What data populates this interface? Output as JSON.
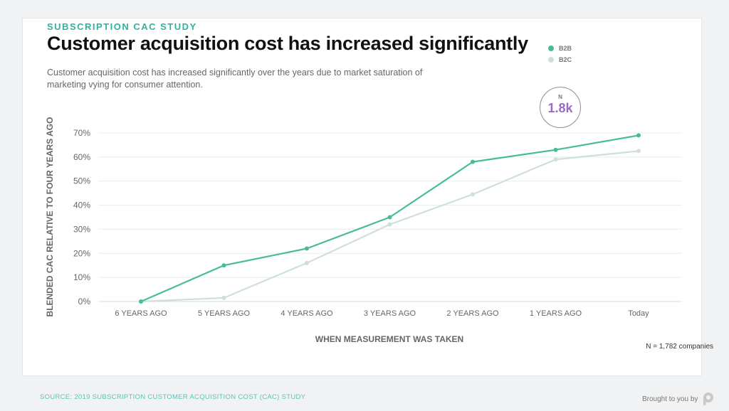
{
  "kicker": "SUBSCRIPTION CAC STUDY",
  "title": "Customer acquisition cost has increased significantly",
  "subtitle": "Customer acquisition cost has increased significantly over the years due to market saturation of marketing vying for consumer attention.",
  "badge": {
    "label": "N",
    "value": "1.8k"
  },
  "footnote": "N = 1,782 companies",
  "source": "SOURCE: 2019 SUBSCRIPTION CUSTOMER ACQUISITION COST (CAC) STUDY",
  "brought_by": "Brought to you by",
  "colors": {
    "b2b": "#46bd97",
    "b2c": "#cfdfe0",
    "accent": "#2fb3a0",
    "badge": "#9b6bc4"
  },
  "chart_data": {
    "type": "line",
    "title": "Customer acquisition cost has increased significantly",
    "xlabel": "WHEN MEASUREMENT WAS TAKEN",
    "ylabel": "BLENDED CAC RELATIVE TO FOUR YEARS AGO",
    "categories": [
      "6 YEARS AGO",
      "5 YEARS AGO",
      "4 YEARS AGO",
      "3 YEARS AGO",
      "2 YEARS AGO",
      "1 YEARS AGO",
      "Today"
    ],
    "ylim": [
      0,
      70
    ],
    "yticks": [
      0,
      10,
      20,
      30,
      40,
      50,
      60,
      70
    ],
    "ytick_labels": [
      "0%",
      "10%",
      "20%",
      "30%",
      "40%",
      "50%",
      "60%",
      "70%"
    ],
    "grid": true,
    "legend": "top-right",
    "series": [
      {
        "name": "B2B",
        "values": [
          0,
          15,
          22,
          35,
          58,
          63,
          69
        ]
      },
      {
        "name": "B2C",
        "values": [
          0,
          1.5,
          16,
          32,
          44.5,
          59,
          62.5
        ]
      }
    ]
  }
}
